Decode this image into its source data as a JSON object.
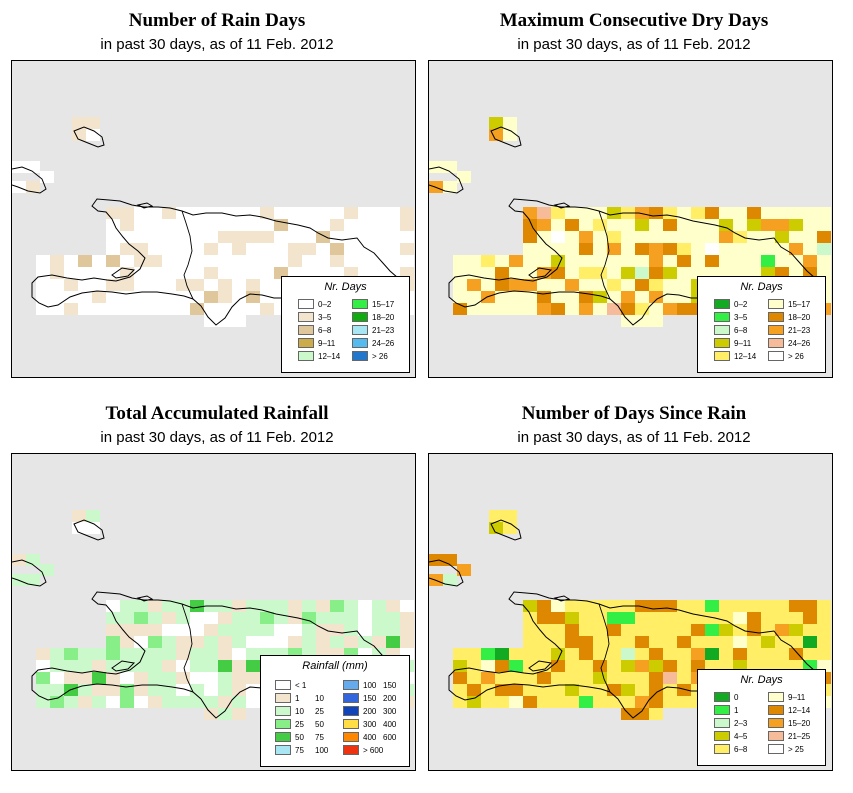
{
  "panels": [
    {
      "title": "Number of Rain Days",
      "subtitle": "in past 30 days, as of  11 Feb. 2012",
      "legend_title": "Nr. Days",
      "legend": [
        {
          "label": "0–2",
          "color": "#ffffff"
        },
        {
          "label": "3–5",
          "color": "#f2e4cd"
        },
        {
          "label": "6–8",
          "color": "#dfc79b"
        },
        {
          "label": "9–11",
          "color": "#ccac4a"
        },
        {
          "label": "12–14",
          "color": "#ccf9cc"
        },
        {
          "label": "15–17",
          "color": "#33ee44"
        },
        {
          "label": "18–20",
          "color": "#11aa11"
        },
        {
          "label": "21–23",
          "color": "#a8e6f4"
        },
        {
          "label": "24–26",
          "color": "#55bbee"
        },
        {
          "label": "> 26",
          "color": "#2277cc"
        }
      ]
    },
    {
      "title": "Maximum Consecutive Dry Days",
      "subtitle": "in past 30 days, as of  11 Feb. 2012",
      "legend_title": "Nr. Days",
      "legend": [
        {
          "label": "0–2",
          "color": "#11aa22"
        },
        {
          "label": "3–5",
          "color": "#33ee44"
        },
        {
          "label": "6–8",
          "color": "#ccf9cc"
        },
        {
          "label": "9–11",
          "color": "#cccc00"
        },
        {
          "label": "12–14",
          "color": "#ffee66"
        },
        {
          "label": "15–17",
          "color": "#ffffcc"
        },
        {
          "label": "18–20",
          "color": "#dd8800"
        },
        {
          "label": "21–23",
          "color": "#f5a020"
        },
        {
          "label": "24–26",
          "color": "#f6bb99"
        },
        {
          "label": "> 26",
          "color": "#ffffff"
        }
      ]
    },
    {
      "title": "Total Accumulated Rainfall",
      "subtitle": "in past 30 days, as of  11 Feb. 2012",
      "legend_title": "Rainfall (mm)",
      "legend": [
        {
          "lo": "< 1",
          "hi": "",
          "color": "#ffffff"
        },
        {
          "lo": "1",
          "hi": "10",
          "color": "#f2e4cd"
        },
        {
          "lo": "10",
          "hi": "25",
          "color": "#ccf9cc"
        },
        {
          "lo": "25",
          "hi": "50",
          "color": "#88ee88"
        },
        {
          "lo": "50",
          "hi": "75",
          "color": "#44cc44"
        },
        {
          "lo": "75",
          "hi": "100",
          "color": "#a8e6f4"
        },
        {
          "lo": "100",
          "hi": "150",
          "color": "#66aaee"
        },
        {
          "lo": "150",
          "hi": "200",
          "color": "#3366dd"
        },
        {
          "lo": "200",
          "hi": "300",
          "color": "#1144bb"
        },
        {
          "lo": "300",
          "hi": "400",
          "color": "#ffdd44"
        },
        {
          "lo": "400",
          "hi": "600",
          "color": "#ff8800"
        },
        {
          "lo": "> 600",
          "hi": "",
          "color": "#ee3311"
        }
      ]
    },
    {
      "title": "Number of Days Since Rain",
      "subtitle": "in past 30 days, as of  11 Feb. 2012",
      "legend_title": "Nr. Days",
      "legend": [
        {
          "label": "0",
          "color": "#11aa22"
        },
        {
          "label": "1",
          "color": "#33ee44"
        },
        {
          "label": "2–3",
          "color": "#ccf9cc"
        },
        {
          "label": "4–5",
          "color": "#cccc00"
        },
        {
          "label": "6–8",
          "color": "#ffee66"
        },
        {
          "label": "9–11",
          "color": "#ffffcc"
        },
        {
          "label": "12–14",
          "color": "#dd8800"
        },
        {
          "label": "15–20",
          "color": "#f5a020"
        },
        {
          "label": "21–25",
          "color": "#f6bb99"
        },
        {
          "label": "> 25",
          "color": "#ffffff"
        }
      ]
    }
  ]
}
